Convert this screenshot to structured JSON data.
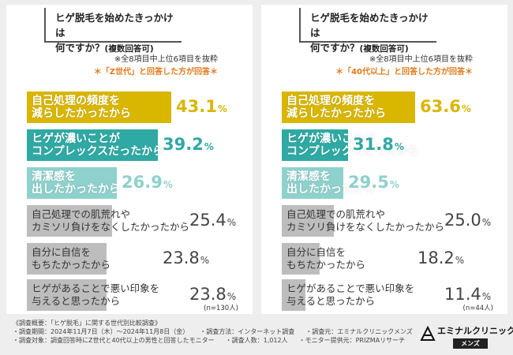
{
  "colors": {
    "c1": "#d9b600",
    "c2": "#2fa9a3",
    "c3": "#8fd1cc",
    "gray": "#bdbdbd",
    "note_orange": "#e07a1a"
  },
  "chart_data": [
    {
      "type": "bar",
      "title": "ヒゲ脱毛を始めたきっかけは",
      "title_line2": "何ですか？",
      "title_sub": "(複数回答可)",
      "note1": "※全8項目中上位6項目を抜粋",
      "note2": "＊「Z世代」と回答した方が回答＊",
      "sample": "(n=130人)",
      "categories": [
        "自己処理の頻度を\n減らしたかったから",
        "ヒゲが濃いことが\nコンプレックスだったから",
        "清潔感を\n出したかったから",
        "自己処理での肌荒れや\nカミソリ負けをなくしたかったから",
        "自分に自信を\nもちたかったから",
        "ヒゲがあることで悪い印象を\n与えると思ったから"
      ],
      "values": [
        43.1,
        39.2,
        26.9,
        25.4,
        23.8,
        23.8
      ],
      "value_labels": [
        "43.1",
        "39.2",
        "26.9",
        "25.4",
        "23.8",
        "23.8"
      ],
      "unit": "%",
      "xlim": [
        0,
        50
      ]
    },
    {
      "type": "bar",
      "title": "ヒゲ脱毛を始めたきっかけは",
      "title_line2": "何ですか？",
      "title_sub": "(複数回答可)",
      "note1": "※全8項目中上位6項目を抜粋",
      "note2": "＊「40代以上」と回答した方が回答＊",
      "sample": "(n=44人)",
      "categories": [
        "自己処理の頻度を\n減らしたかったから",
        "ヒゲが濃いことが\nコンプレックスだったから",
        "清潔感を\n出したかったから",
        "自己処理での肌荒れや\nカミソリ負けをなくしたかったから",
        "自分に自信を\nもちたかったから",
        "ヒゲがあることで悪い印象を\n与えると思ったから"
      ],
      "values": [
        63.6,
        31.8,
        29.5,
        25.0,
        18.2,
        11.4
      ],
      "value_labels": [
        "63.6",
        "31.8",
        "29.5",
        "25.0",
        "18.2",
        "11.4"
      ],
      "unit": "%",
      "xlim": [
        0,
        80
      ]
    }
  ],
  "footer": {
    "line1": "《調査概要：「ヒゲ脱毛」に関する世代別比較調査》",
    "line2a": "・調査期間：2024年11月7日（木）〜2024年11月8日（金）",
    "line2b": "・調査方法：インターネット調査",
    "line2c": "・調査元：エミナルクリニックメンズ",
    "line3a": "・調査対象：調査回答時にZ世代と40代以上の男性と回答したモニター",
    "line3b": "・調査人数：1,012人",
    "line3c": "・モニター提供元：PRIZMAリサーチ"
  },
  "logo": {
    "name": "エミナルクリニック",
    "sub": "メンズ"
  }
}
